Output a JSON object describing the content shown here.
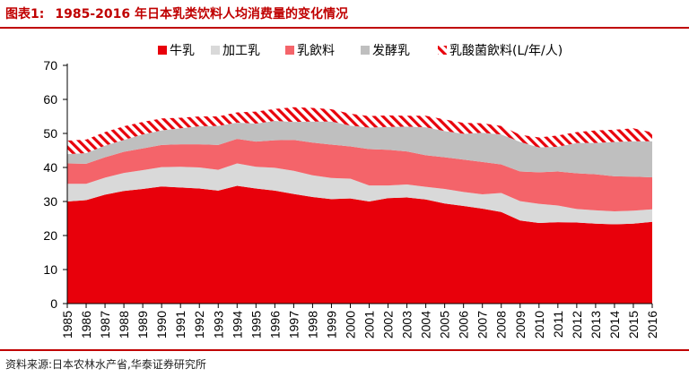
{
  "header": {
    "label": "图表1:",
    "title": "1985-2016 年日本乳类饮料人均消费量的变化情况"
  },
  "source": "资料来源:日本农林水产省,华泰证券研究所",
  "colors": {
    "milk": "#e8000b",
    "processed_milk": "#d9d9d9",
    "milk_beverage": "#f4646a",
    "fermented_milk": "#bfbfbf",
    "lactic_beverage": "#e8000b",
    "accent": "#c00000"
  },
  "chart_data": {
    "type": "area",
    "stacked": true,
    "categories": [
      "1985",
      "1986",
      "1987",
      "1988",
      "1989",
      "1990",
      "1991",
      "1992",
      "1993",
      "1994",
      "1995",
      "1996",
      "1997",
      "1998",
      "1999",
      "2000",
      "2001",
      "2002",
      "2003",
      "2004",
      "2005",
      "2006",
      "2007",
      "2008",
      "2009",
      "2010",
      "2011",
      "2012",
      "2013",
      "2014",
      "2015",
      "2016"
    ],
    "ylim": [
      0,
      70
    ],
    "yticks": [
      0,
      10,
      20,
      30,
      40,
      50,
      60,
      70
    ],
    "grid": false,
    "legend_position": "top",
    "series": [
      {
        "name": "牛乳",
        "key": "milk",
        "pattern": "solid",
        "values": [
          30.0,
          30.4,
          32.0,
          33.1,
          33.7,
          34.4,
          34.1,
          33.8,
          33.2,
          34.6,
          33.8,
          33.2,
          32.2,
          31.3,
          30.7,
          30.9,
          30.0,
          31.0,
          31.2,
          30.6,
          29.4,
          28.7,
          27.9,
          26.9,
          24.4,
          23.7,
          23.9,
          23.8,
          23.5,
          23.3,
          23.5,
          24.0
        ]
      },
      {
        "name": "加工乳",
        "key": "processed_milk",
        "pattern": "solid",
        "values": [
          5.2,
          4.8,
          5.0,
          5.3,
          5.5,
          5.7,
          6.1,
          6.2,
          6.1,
          6.6,
          6.4,
          6.7,
          6.8,
          6.4,
          6.2,
          5.8,
          4.7,
          3.7,
          3.8,
          3.7,
          4.3,
          4.1,
          4.2,
          5.6,
          5.7,
          5.6,
          4.9,
          4.0,
          3.9,
          3.8,
          3.8,
          3.7
        ]
      },
      {
        "name": "乳飲料",
        "key": "milk_beverage",
        "pattern": "solid",
        "values": [
          6.0,
          5.9,
          6.0,
          6.2,
          6.4,
          6.5,
          6.6,
          6.8,
          7.3,
          7.2,
          7.4,
          8.1,
          9.1,
          9.6,
          9.8,
          9.5,
          10.7,
          10.5,
          9.7,
          9.3,
          9.3,
          9.5,
          9.5,
          8.4,
          8.7,
          9.3,
          10.0,
          10.5,
          10.6,
          10.3,
          10.0,
          9.4
        ]
      },
      {
        "name": "发酵乳",
        "key": "fermented_milk",
        "pattern": "solid",
        "values": [
          2.7,
          3.1,
          3.4,
          3.5,
          4.1,
          4.3,
          4.7,
          5.3,
          5.6,
          4.8,
          5.3,
          5.7,
          5.3,
          6.2,
          6.8,
          6.1,
          6.3,
          6.7,
          7.3,
          8.2,
          7.7,
          7.6,
          8.6,
          8.8,
          8.7,
          7.3,
          7.3,
          8.9,
          9.2,
          10.1,
          10.4,
          10.6
        ]
      },
      {
        "name": "乳酸菌飲料",
        "key": "lactic_beverage",
        "pattern": "hatch",
        "values": [
          4.0,
          4.0,
          4.0,
          4.0,
          3.7,
          3.5,
          3.1,
          2.9,
          2.8,
          3.0,
          3.5,
          3.5,
          4.3,
          4.0,
          3.6,
          3.5,
          3.4,
          3.4,
          3.2,
          3.4,
          3.4,
          3.2,
          2.8,
          2.5,
          2.1,
          2.9,
          3.3,
          3.2,
          3.7,
          3.6,
          3.8,
          2.6
        ]
      }
    ],
    "legend_unit": "(L/年/人)"
  }
}
